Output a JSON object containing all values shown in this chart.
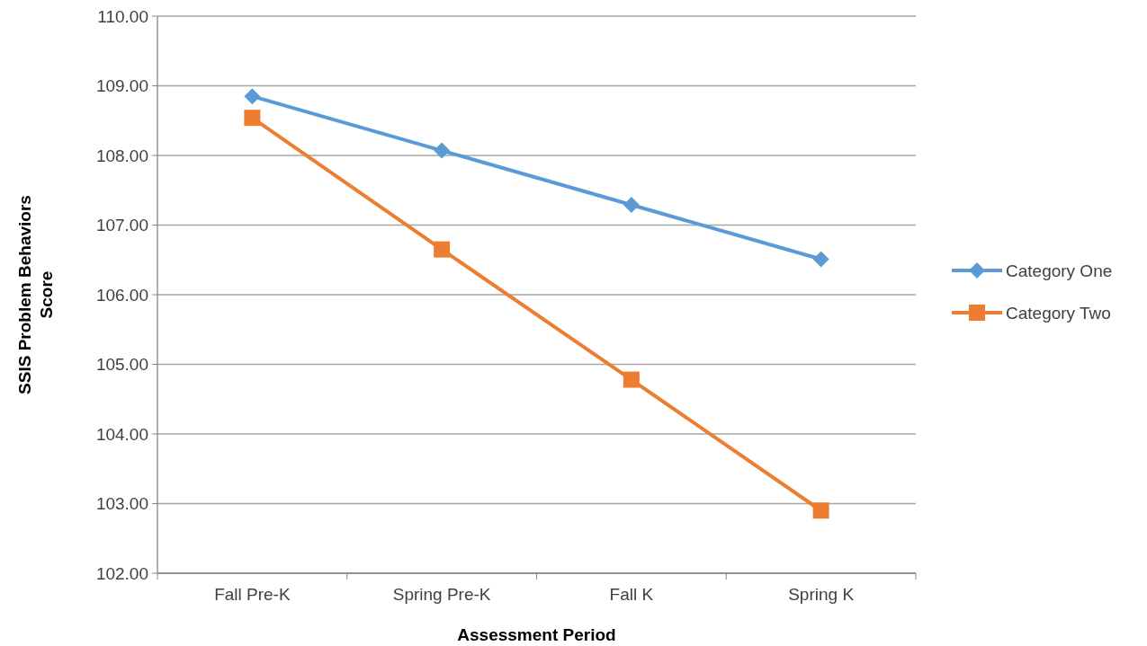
{
  "chart_data": {
    "type": "line",
    "xlabel": "Assessment Period",
    "ylabel": "SSIS Problem Behaviors Score",
    "categories": [
      "Fall Pre-K",
      "Spring Pre-K",
      "Fall K",
      "Spring K"
    ],
    "series": [
      {
        "name": "Category One",
        "color": "#5b9bd5",
        "marker": "diamond",
        "values": [
          108.85,
          108.07,
          107.29,
          106.51
        ]
      },
      {
        "name": "Category Two",
        "color": "#ed7d31",
        "marker": "square",
        "values": [
          108.54,
          106.65,
          104.78,
          102.9
        ]
      }
    ],
    "ylim": [
      102,
      110
    ],
    "yticks": [
      {
        "value": 102,
        "label": "102.00"
      },
      {
        "value": 103,
        "label": "103.00"
      },
      {
        "value": 104,
        "label": "104.00"
      },
      {
        "value": 105,
        "label": "105.00"
      },
      {
        "value": 106,
        "label": "106.00"
      },
      {
        "value": 107,
        "label": "107.00"
      },
      {
        "value": 108,
        "label": "108.00"
      },
      {
        "value": 109,
        "label": "109.00"
      },
      {
        "value": 110,
        "label": "110.00"
      }
    ],
    "grid": "y",
    "legend": "right",
    "line_style": "solid"
  }
}
